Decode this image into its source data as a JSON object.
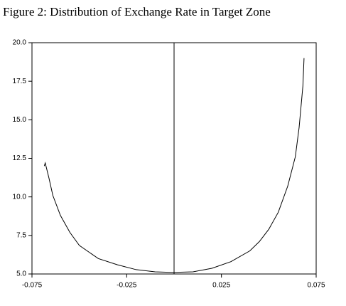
{
  "chart_data": {
    "type": "line",
    "title": "Figure 2: Distribution of Exchange Rate in Target Zone",
    "x": [
      -0.0685,
      -0.068,
      -0.066,
      -0.064,
      -0.06,
      -0.055,
      -0.05,
      -0.04,
      -0.03,
      -0.02,
      -0.01,
      0,
      0.01,
      0.02,
      0.03,
      0.04,
      0.045,
      0.05,
      0.055,
      0.06,
      0.064,
      0.066,
      0.068,
      0.0686
    ],
    "series": [
      {
        "color": "#000000",
        "values": [
          12.0,
          12.2,
          11.2,
          10.1,
          8.8,
          7.7,
          6.85,
          6.0,
          5.6,
          5.28,
          5.14,
          5.1,
          5.14,
          5.37,
          5.8,
          6.5,
          7.1,
          7.9,
          9.0,
          10.7,
          12.6,
          14.5,
          17.2,
          19.0
        ]
      }
    ],
    "xlim": [
      -0.075,
      0.075
    ],
    "xticks": [
      -0.075,
      -0.025,
      0.025,
      0.075
    ],
    "ylim": [
      5,
      20
    ],
    "yticks": [
      {
        "value": 5,
        "label": "5.0"
      },
      7.5,
      {
        "value": 10,
        "label": "10.0"
      },
      12.5,
      {
        "value": 15,
        "label": "15.0"
      },
      17.5,
      {
        "value": 20,
        "label": "20.0"
      }
    ],
    "vline": 0,
    "grid": false
  }
}
